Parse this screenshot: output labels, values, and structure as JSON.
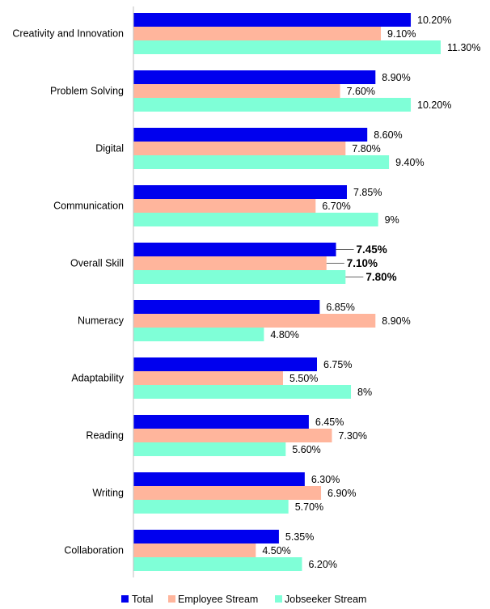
{
  "chart_data": {
    "type": "bar",
    "orientation": "horizontal",
    "categories": [
      "Creativity and Innovation",
      "Problem Solving",
      "Digital",
      "Communication",
      "Overall Skill",
      "Numeracy",
      "Adaptability",
      "Reading",
      "Writing",
      "Collaboration"
    ],
    "series": [
      {
        "name": "Total",
        "color": "#0000ee",
        "values": [
          10.2,
          8.9,
          8.6,
          7.85,
          7.45,
          6.85,
          6.75,
          6.45,
          6.3,
          5.35
        ],
        "labels": [
          "10.20%",
          "8.90%",
          "8.60%",
          "7.85%",
          "7.45%",
          "6.85%",
          "6.75%",
          "6.45%",
          "6.30%",
          "5.35%"
        ]
      },
      {
        "name": "Employee Stream",
        "color": "#ffb59c",
        "values": [
          9.1,
          7.6,
          7.8,
          6.7,
          7.1,
          8.9,
          5.5,
          7.3,
          6.9,
          4.5
        ],
        "labels": [
          "9.10%",
          "7.60%",
          "7.80%",
          "6.70%",
          "7.10%",
          "8.90%",
          "5.50%",
          "7.30%",
          "6.90%",
          "4.50%"
        ]
      },
      {
        "name": "Jobseeker Stream",
        "color": "#7fffd7",
        "values": [
          11.3,
          10.2,
          9.4,
          9.0,
          7.8,
          4.8,
          8.0,
          5.6,
          5.7,
          6.2
        ],
        "labels": [
          "11.30%",
          "10.20%",
          "9.40%",
          "9%",
          "7.80%",
          "4.80%",
          "8%",
          "5.60%",
          "5.70%",
          "6.20%"
        ]
      }
    ],
    "highlighted_category": "Overall Skill",
    "xlim": [
      0,
      12
    ],
    "grid": false,
    "legend_position": "bottom"
  }
}
